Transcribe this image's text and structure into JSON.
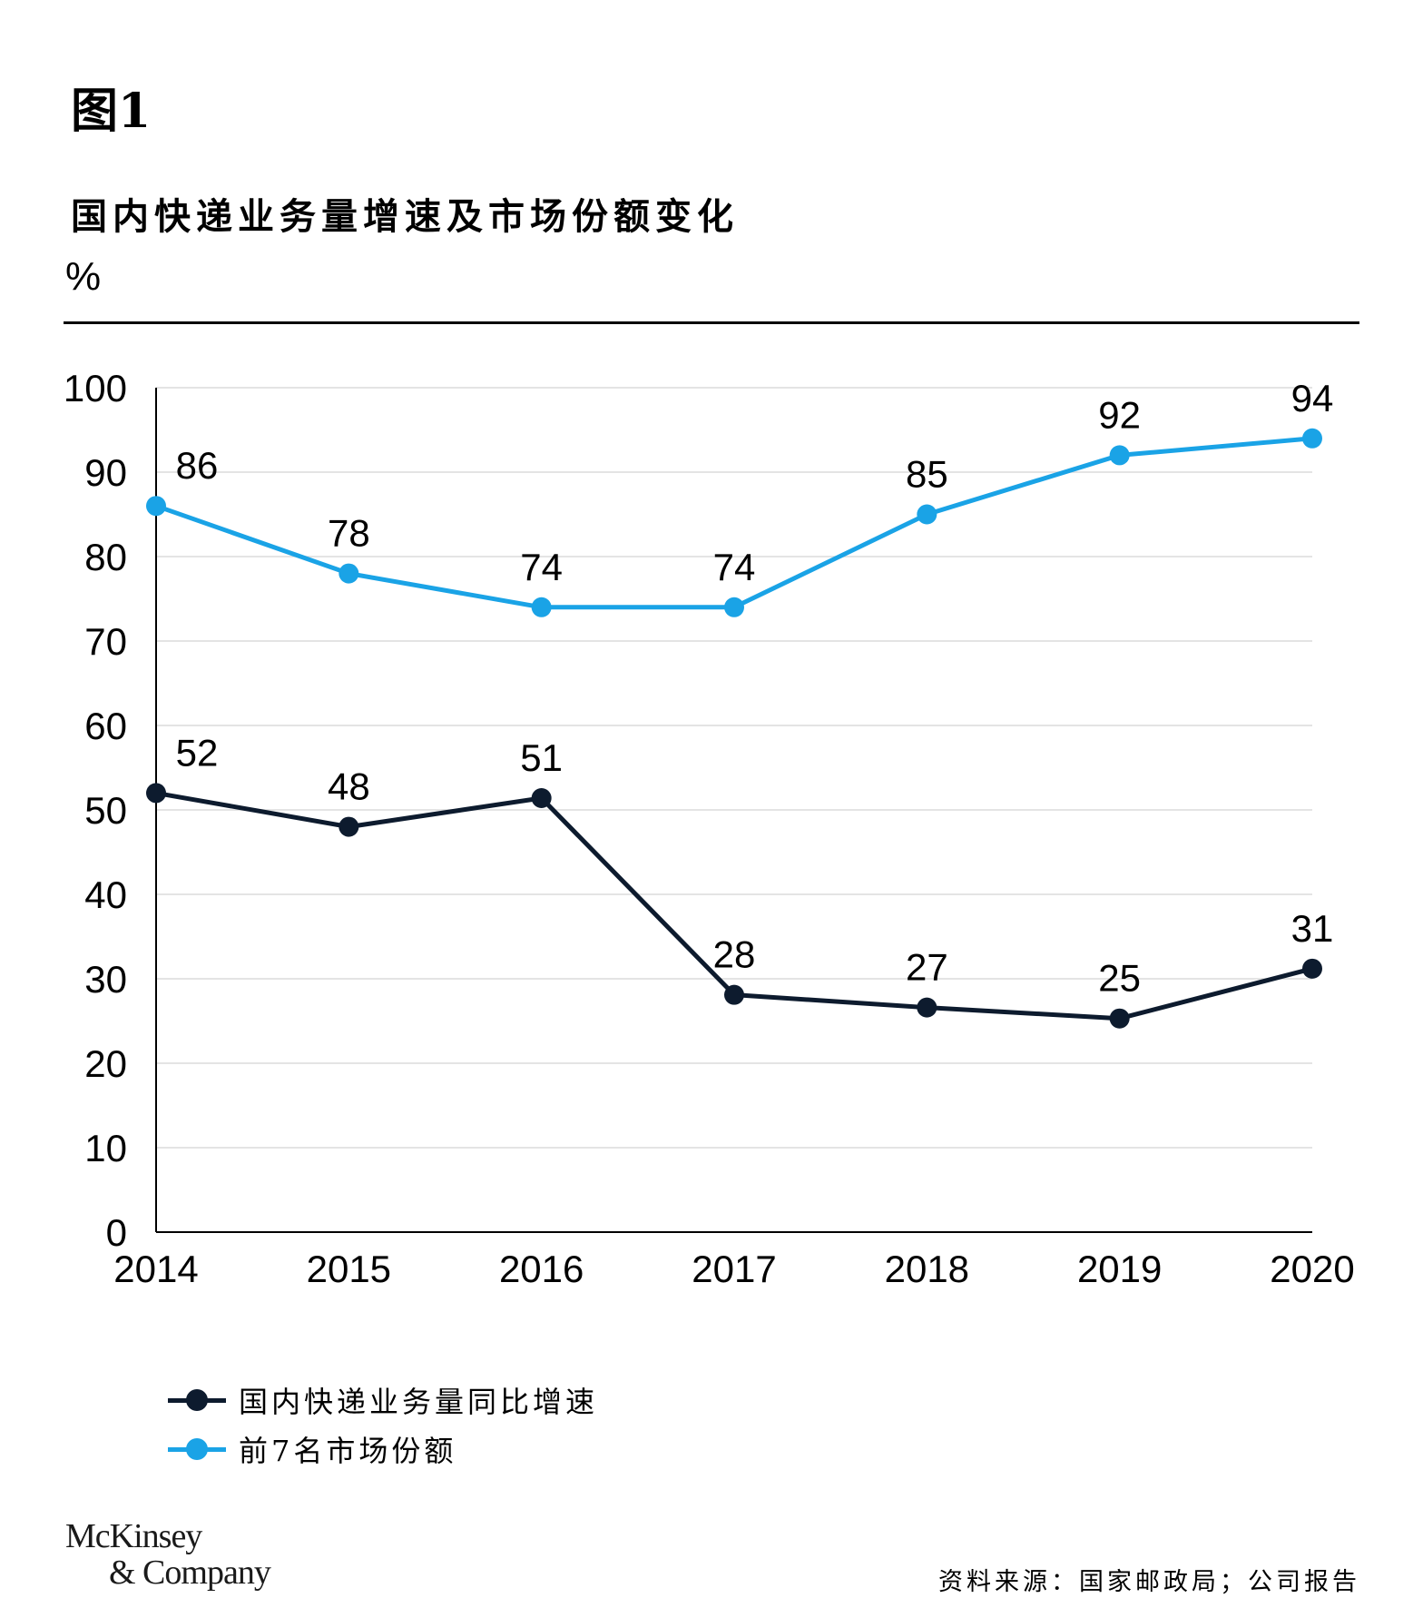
{
  "figure_label": "图1",
  "unit": "%",
  "chart_data": {
    "type": "line",
    "title": "国内快递业务量增速及市场份额变化",
    "ylabel": "%",
    "xlabel": "",
    "ylim": [
      0,
      100
    ],
    "yticks": [
      0,
      10,
      20,
      30,
      40,
      50,
      60,
      70,
      80,
      90,
      100
    ],
    "categories": [
      "2014",
      "2015",
      "2016",
      "2017",
      "2018",
      "2019",
      "2020"
    ],
    "grid": true,
    "legend_position": "bottom-left",
    "series": [
      {
        "name": "国内快递业务量同比增速",
        "color": "#0d1b2e",
        "values": [
          52,
          48,
          51.4,
          28.1,
          26.6,
          25.3,
          31.2
        ],
        "labels": [
          "52",
          "48",
          "51",
          "28",
          "27",
          "25",
          "31"
        ]
      },
      {
        "name": "前7名市场份额",
        "color": "#1aa3e6",
        "values": [
          86,
          78,
          74,
          74,
          85,
          92,
          94
        ],
        "labels": [
          "86",
          "78",
          "74",
          "74",
          "85",
          "92",
          "94"
        ]
      }
    ]
  },
  "legend": [
    {
      "label": "国内快递业务量同比增速",
      "color": "#0d1b2e"
    },
    {
      "label": "前7名市场份额",
      "color": "#1aa3e6"
    }
  ],
  "logo": {
    "line1": "McKinsey",
    "line2": "& Company"
  },
  "source": "资料来源：国家邮政局；公司报告"
}
